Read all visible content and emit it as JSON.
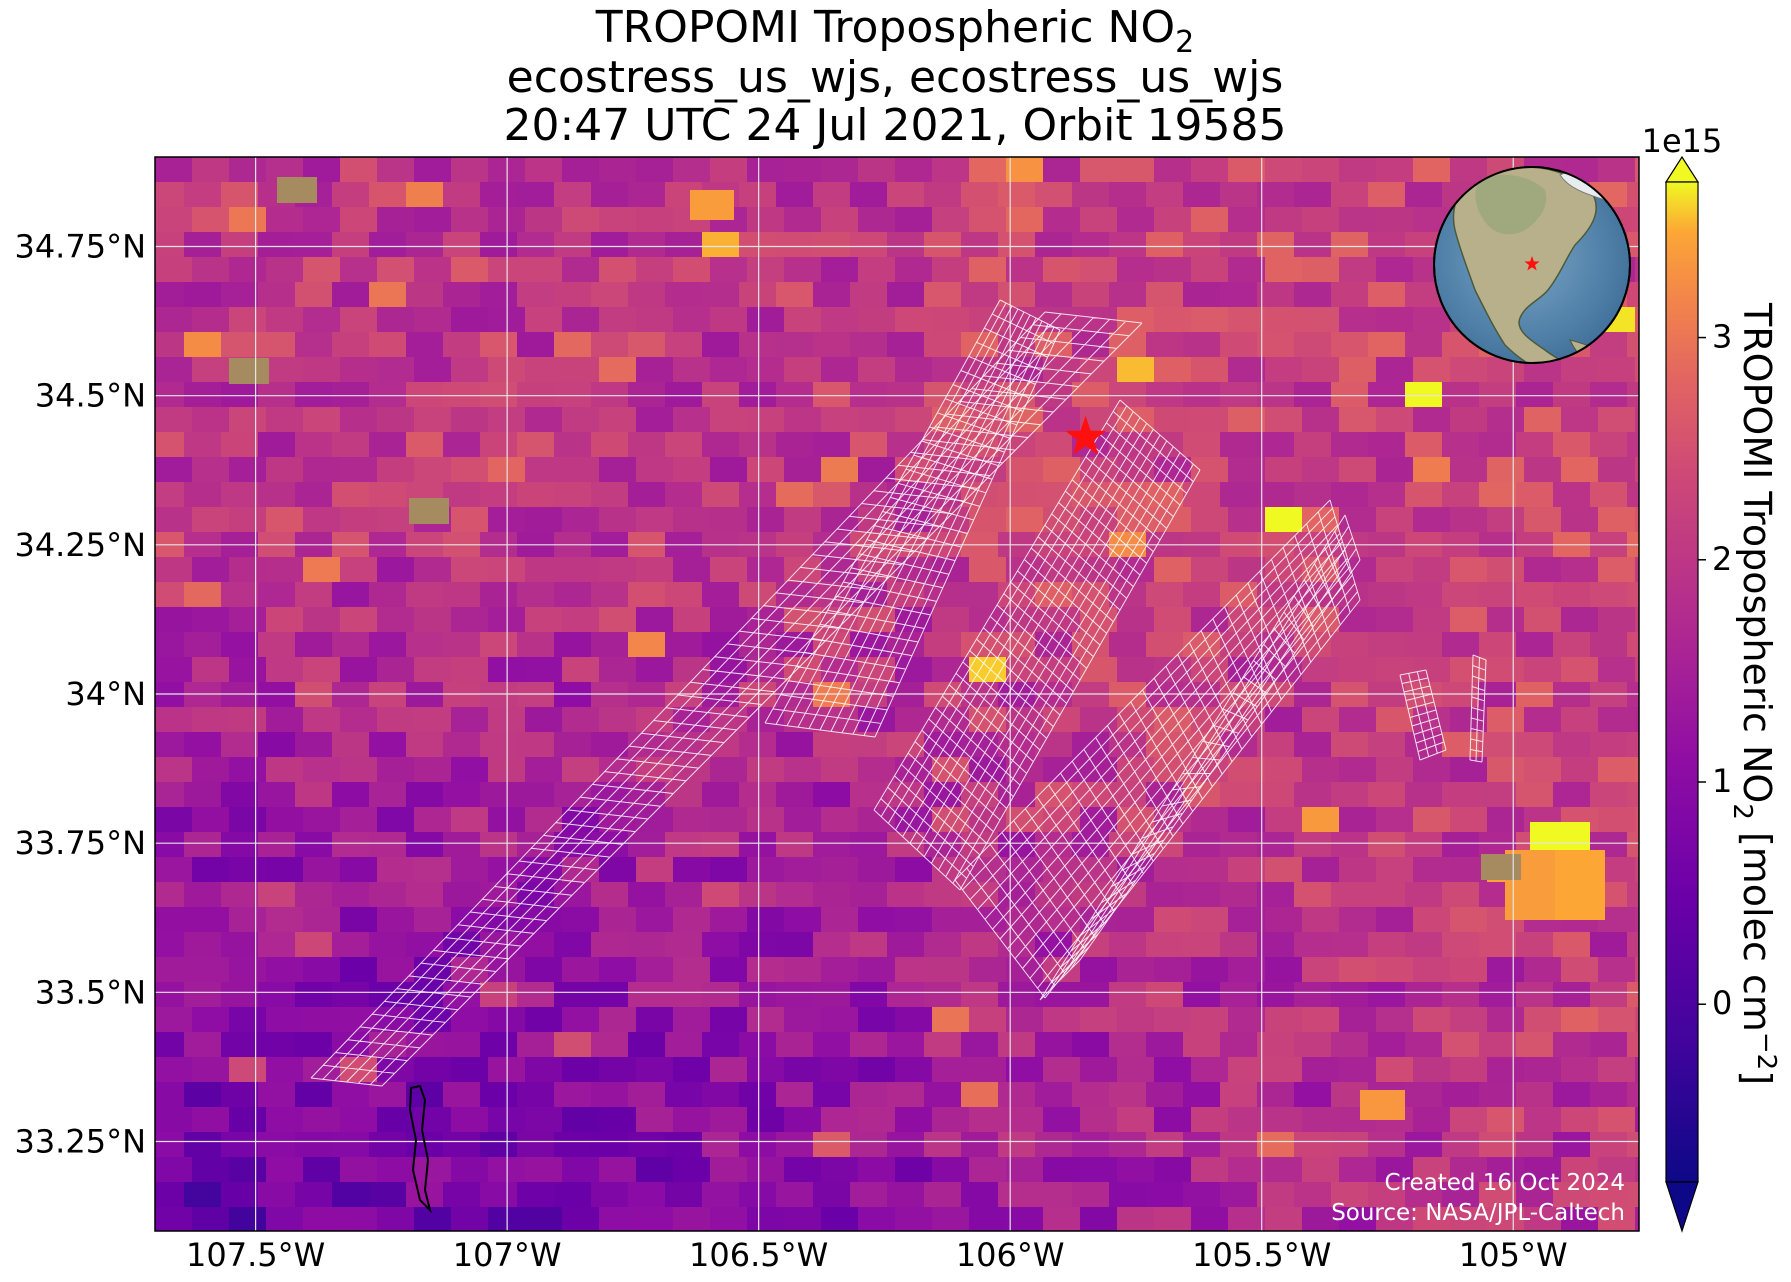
{
  "title": {
    "line1_prefix": "TROPOMI Tropospheric NO",
    "line1_subscript": "2",
    "line2": "ecostress_us_wjs, ecostress_us_wjs",
    "line3": "20:47 UTC 24 Jul 2021, Orbit 19585"
  },
  "map": {
    "projection_extent": {
      "lon": [
        -107.7,
        -104.75
      ],
      "lat": [
        33.1,
        34.9
      ]
    },
    "lat_ticks": [
      {
        "value": 34.75,
        "label": "34.75°N"
      },
      {
        "value": 34.5,
        "label": "34.5°N"
      },
      {
        "value": 34.25,
        "label": "34.25°N"
      },
      {
        "value": 34.0,
        "label": "34°N"
      },
      {
        "value": 33.75,
        "label": "33.75°N"
      },
      {
        "value": 33.5,
        "label": "33.5°N"
      },
      {
        "value": 33.25,
        "label": "33.25°N"
      }
    ],
    "lon_ticks": [
      {
        "value": -107.5,
        "label": "107.5°W"
      },
      {
        "value": -107.0,
        "label": "107°W"
      },
      {
        "value": -106.5,
        "label": "106.5°W"
      },
      {
        "value": -106.0,
        "label": "106°W"
      },
      {
        "value": -105.5,
        "label": "105.5°W"
      },
      {
        "value": -105.0,
        "label": "105°W"
      }
    ],
    "marker": {
      "lon": -105.85,
      "lat": 34.43,
      "symbol": "red-star"
    },
    "inset_globe": {
      "description": "globe-inset",
      "marker": "red-star"
    },
    "gridlines": true
  },
  "colorbar": {
    "exponent_label": "1e15",
    "label_prefix": "TROPOMI Tropospheric NO",
    "label_sub": "2",
    "label_mid": " [molec cm",
    "label_sup": "−2",
    "label_suffix": "]",
    "range": [
      -0.8,
      3.7
    ],
    "ticks": [
      {
        "value": 0,
        "label": "0"
      },
      {
        "value": 1,
        "label": "1"
      },
      {
        "value": 2,
        "label": "2"
      },
      {
        "value": 3,
        "label": "3"
      }
    ],
    "colormap": "plasma",
    "extend": "both"
  },
  "credit": {
    "line1": "Created 16 Oct 2024",
    "line2": "Source: NASA/JPL-Caltech"
  }
}
